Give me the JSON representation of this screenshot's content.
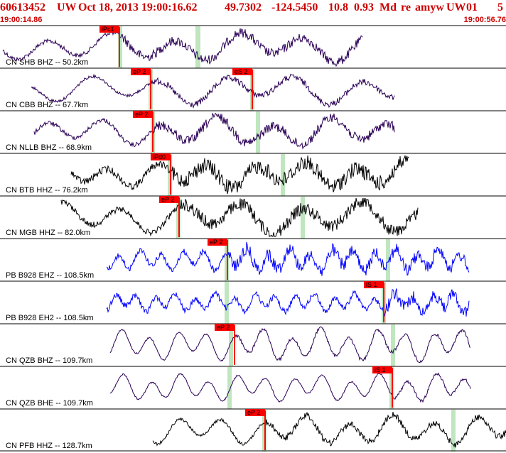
{
  "header": {
    "event_id": "60613452",
    "network": "UW",
    "datetime": "Oct 18, 2013 19:00:16.62",
    "lat": "49.7302",
    "lon": "-124.5450",
    "depth": "10.8",
    "magnitude": "0.93",
    "mag_type": "Md",
    "review": "re",
    "author": "amyw",
    "agency": "UW",
    "version": "01",
    "page": "5"
  },
  "timeline": {
    "start": "19:00:14.86",
    "end": "19:00:56.76"
  },
  "colors": {
    "header_red": "#cc0000",
    "pick_red": "#ff0000",
    "window_green": "#bfe6bf",
    "trace_blue": "#0000ff",
    "trace_purple": "#2a0055",
    "trace_black": "#000000"
  },
  "traces": [
    {
      "label": "CN SHB BHZ -- 50.2km",
      "picks": [
        {
          "label": "iPc1"
        }
      ]
    },
    {
      "label": "CN CBB BHZ -- 67.7km",
      "picks": [
        {
          "label": "eP 2"
        },
        {
          "label": "eS 2"
        }
      ]
    },
    {
      "label": "CN NLLB BHZ -- 68.9km",
      "picks": [
        {
          "label": "eP 2"
        }
      ]
    },
    {
      "label": "CN BTB HHZ -- 76.2km",
      "picks": [
        {
          "label": "iPd0"
        }
      ]
    },
    {
      "label": "CN MGB HHZ -- 82.0km",
      "picks": [
        {
          "label": "eP 2"
        }
      ]
    },
    {
      "label": "PB B928 EHZ -- 108.5km",
      "picks": [
        {
          "label": "eP 2"
        }
      ]
    },
    {
      "label": "PB B928 EH2 -- 108.5km",
      "picks": [
        {
          "label": "iS 1"
        }
      ]
    },
    {
      "label": "CN QZB BHZ -- 109.7km",
      "picks": [
        {
          "label": "eP 2"
        }
      ]
    },
    {
      "label": "CN QZB BHE -- 109.7km",
      "picks": [
        {
          "label": "iS 1"
        }
      ]
    },
    {
      "label": "CN PFB HHZ -- 128.7km",
      "picks": [
        {
          "label": "eP 2"
        }
      ]
    }
  ]
}
